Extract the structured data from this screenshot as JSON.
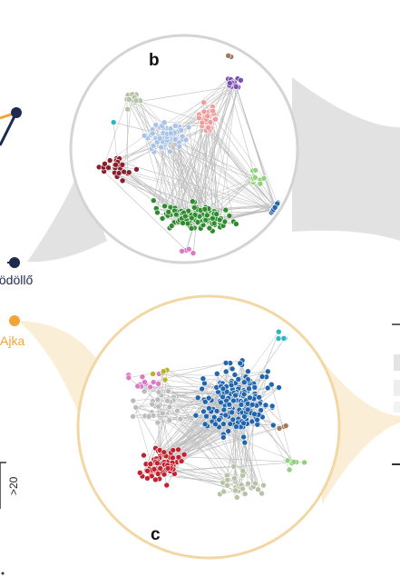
{
  "panels": [
    {
      "letter": "b",
      "town": "Gödöllő",
      "ring_color": "#d4d4d4",
      "anchor_color": "#1e2a4f"
    },
    {
      "letter": "c",
      "town": "Ajka",
      "ring_color": "#f2d7a4",
      "anchor_color": "#f0a43a"
    }
  ],
  "legend": {
    "tick_label": ">20"
  },
  "colors": {
    "edge": "#bdbdbd",
    "green": "#2e8b2e",
    "light_blue": "#a9c3e6",
    "pink": "#f19a9a",
    "purple": "#7b4fb0",
    "dark_red": "#8b1e2c",
    "blue": "#2166ac",
    "sage": "#b5c2a6",
    "light_green": "#8fd27a",
    "magenta": "#de77c6",
    "cyan": "#29b6c8",
    "olive": "#b8b32a",
    "brown": "#a07a5a",
    "red": "#c0222f",
    "gray": "#bbbbbb"
  }
}
